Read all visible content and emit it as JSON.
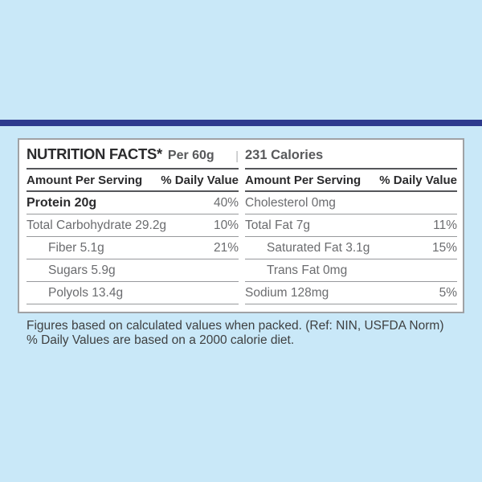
{
  "header": {
    "title": "NUTRITION FACTS*",
    "serving": "Per 60g",
    "divider": "|",
    "calories": "231 Calories"
  },
  "column_headers": {
    "amount": "Amount Per Serving",
    "daily_value": "% Daily Value"
  },
  "columns": {
    "left": {
      "rows": [
        {
          "label": "Protein 20g",
          "value": "40%"
        },
        {
          "label": "Total Carbohydrate 29.2g",
          "value": "10%"
        },
        {
          "label": "Fiber 5.1g",
          "value": "21%"
        },
        {
          "label": "Sugars 5.9g",
          "value": ""
        },
        {
          "label": "Polyols 13.4g",
          "value": ""
        }
      ]
    },
    "right": {
      "rows": [
        {
          "label": "Cholesterol 0mg",
          "value": ""
        },
        {
          "label": "Total Fat 7g",
          "value": "11%"
        },
        {
          "label": "Saturated Fat 3.1g",
          "value": "15%"
        },
        {
          "label": "Trans Fat 0mg",
          "value": ""
        },
        {
          "label": "Sodium 128mg",
          "value": "5%"
        }
      ]
    }
  },
  "footnotes": [
    "Figures based on calculated values when packed. (Ref: NIN, USFDA Norm)",
    "% Daily Values are based on a 2000 calorie diet."
  ],
  "colors": {
    "background": "#c9e8f8",
    "accent_bar": "#2d3a8e",
    "panel_background": "#ffffff",
    "panel_border": "#a0a2a5",
    "heavy_rule": "#55565a",
    "light_rule": "#97999c",
    "dark_text": "#2b2b2d",
    "gray_text": "#6b6c6f",
    "subtitle_gray": "#58595b",
    "divider_gray": "#b4b6b8",
    "footnote_text": "#3f4041"
  }
}
